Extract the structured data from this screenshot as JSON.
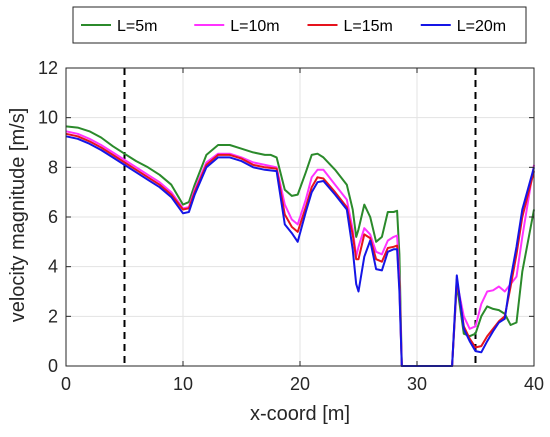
{
  "chart_data": {
    "type": "line",
    "xlabel": "x-coord [m]",
    "ylabel": "velocity magnitude [m/s]",
    "xlim": [
      0,
      40
    ],
    "ylim": [
      0,
      12
    ],
    "xticks": [
      0,
      10,
      20,
      30,
      40
    ],
    "yticks": [
      0,
      2,
      4,
      6,
      8,
      10,
      12
    ],
    "grid": true,
    "legend_position": "top",
    "reference_lines": [
      {
        "x": 5,
        "style": "dashed",
        "color": "#000000"
      },
      {
        "x": 35,
        "style": "dashed",
        "color": "#000000"
      }
    ],
    "series": [
      {
        "name": "L=5m",
        "color": "#2b8a2b",
        "points": [
          [
            0,
            9.65
          ],
          [
            1,
            9.6
          ],
          [
            2,
            9.45
          ],
          [
            3,
            9.2
          ],
          [
            4,
            8.85
          ],
          [
            5,
            8.55
          ],
          [
            6,
            8.25
          ],
          [
            7,
            8.0
          ],
          [
            8,
            7.7
          ],
          [
            9,
            7.3
          ],
          [
            10,
            6.5
          ],
          [
            10.5,
            6.6
          ],
          [
            11,
            7.3
          ],
          [
            12,
            8.5
          ],
          [
            13,
            8.9
          ],
          [
            14,
            8.9
          ],
          [
            15,
            8.75
          ],
          [
            16,
            8.6
          ],
          [
            17,
            8.5
          ],
          [
            17.5,
            8.5
          ],
          [
            18,
            8.4
          ],
          [
            18.7,
            7.1
          ],
          [
            19.3,
            6.85
          ],
          [
            19.8,
            6.9
          ],
          [
            20.5,
            7.8
          ],
          [
            21,
            8.5
          ],
          [
            21.5,
            8.55
          ],
          [
            22,
            8.4
          ],
          [
            23,
            7.9
          ],
          [
            24,
            7.3
          ],
          [
            24.5,
            6.3
          ],
          [
            24.8,
            5.2
          ],
          [
            25,
            5.5
          ],
          [
            25.5,
            6.5
          ],
          [
            26,
            6.0
          ],
          [
            26.5,
            5.0
          ],
          [
            27,
            5.2
          ],
          [
            27.5,
            6.2
          ],
          [
            28,
            6.2
          ],
          [
            28.3,
            6.25
          ],
          [
            28.5,
            4.5
          ],
          [
            28.7,
            0
          ],
          [
            33,
            0
          ],
          [
            33.4,
            3.3
          ],
          [
            34,
            1.3
          ],
          [
            34.5,
            1.2
          ],
          [
            35,
            1.3
          ],
          [
            35.5,
            2.0
          ],
          [
            36,
            2.4
          ],
          [
            36.5,
            2.3
          ],
          [
            37,
            2.25
          ],
          [
            37.5,
            2.1
          ],
          [
            38,
            1.65
          ],
          [
            38.5,
            1.75
          ],
          [
            39,
            3.8
          ],
          [
            40,
            6.3
          ]
        ]
      },
      {
        "name": "L=10m",
        "color": "#ff33ff",
        "points": [
          [
            0,
            9.45
          ],
          [
            1,
            9.35
          ],
          [
            2,
            9.15
          ],
          [
            3,
            8.9
          ],
          [
            4,
            8.6
          ],
          [
            5,
            8.3
          ],
          [
            6,
            8.0
          ],
          [
            7,
            7.7
          ],
          [
            8,
            7.4
          ],
          [
            9,
            7.0
          ],
          [
            10,
            6.35
          ],
          [
            10.5,
            6.4
          ],
          [
            11,
            7.1
          ],
          [
            12,
            8.2
          ],
          [
            13,
            8.55
          ],
          [
            14,
            8.55
          ],
          [
            15,
            8.4
          ],
          [
            16,
            8.2
          ],
          [
            17,
            8.1
          ],
          [
            18,
            8.0
          ],
          [
            18.7,
            6.5
          ],
          [
            19.3,
            5.9
          ],
          [
            19.8,
            5.7
          ],
          [
            20.5,
            6.7
          ],
          [
            21,
            7.6
          ],
          [
            21.5,
            7.9
          ],
          [
            22,
            7.9
          ],
          [
            23,
            7.3
          ],
          [
            24,
            6.7
          ],
          [
            24.5,
            5.5
          ],
          [
            24.8,
            4.4
          ],
          [
            25,
            4.8
          ],
          [
            25.5,
            5.55
          ],
          [
            26,
            5.3
          ],
          [
            26.5,
            4.6
          ],
          [
            27,
            4.5
          ],
          [
            27.5,
            5.05
          ],
          [
            28,
            5.2
          ],
          [
            28.3,
            5.25
          ],
          [
            28.5,
            3.5
          ],
          [
            28.7,
            0
          ],
          [
            33,
            0
          ],
          [
            33.4,
            3.4
          ],
          [
            34,
            2.0
          ],
          [
            34.5,
            1.5
          ],
          [
            35,
            1.6
          ],
          [
            35.5,
            2.5
          ],
          [
            36,
            3.0
          ],
          [
            36.5,
            3.05
          ],
          [
            37,
            3.2
          ],
          [
            37.5,
            3.0
          ],
          [
            38,
            3.3
          ],
          [
            38.5,
            3.6
          ],
          [
            39,
            5.2
          ],
          [
            40,
            8.1
          ]
        ]
      },
      {
        "name": "L=15m",
        "color": "#e6131d",
        "points": [
          [
            0,
            9.35
          ],
          [
            1,
            9.25
          ],
          [
            2,
            9.05
          ],
          [
            3,
            8.8
          ],
          [
            4,
            8.5
          ],
          [
            5,
            8.2
          ],
          [
            6,
            7.9
          ],
          [
            7,
            7.6
          ],
          [
            8,
            7.3
          ],
          [
            9,
            6.9
          ],
          [
            10,
            6.3
          ],
          [
            10.5,
            6.35
          ],
          [
            11,
            7.0
          ],
          [
            12,
            8.1
          ],
          [
            13,
            8.5
          ],
          [
            14,
            8.5
          ],
          [
            15,
            8.35
          ],
          [
            16,
            8.1
          ],
          [
            17,
            8.0
          ],
          [
            18,
            7.95
          ],
          [
            18.7,
            6.1
          ],
          [
            19.3,
            5.6
          ],
          [
            19.8,
            5.4
          ],
          [
            20.5,
            6.4
          ],
          [
            21,
            7.2
          ],
          [
            21.5,
            7.6
          ],
          [
            22,
            7.55
          ],
          [
            23,
            7.0
          ],
          [
            24,
            6.4
          ],
          [
            24.5,
            5.3
          ],
          [
            24.8,
            4.3
          ],
          [
            25,
            4.3
          ],
          [
            25.5,
            5.3
          ],
          [
            26,
            5.15
          ],
          [
            26.5,
            4.3
          ],
          [
            27,
            4.2
          ],
          [
            27.5,
            4.75
          ],
          [
            28,
            4.8
          ],
          [
            28.3,
            4.85
          ],
          [
            28.5,
            3.2
          ],
          [
            28.7,
            0
          ],
          [
            33,
            0
          ],
          [
            33.4,
            3.5
          ],
          [
            34,
            1.6
          ],
          [
            34.5,
            1.1
          ],
          [
            35,
            0.75
          ],
          [
            35.5,
            0.8
          ],
          [
            36,
            1.2
          ],
          [
            36.5,
            1.5
          ],
          [
            37,
            1.8
          ],
          [
            37.5,
            2.0
          ],
          [
            38,
            3.2
          ],
          [
            38.5,
            4.5
          ],
          [
            39,
            6.0
          ],
          [
            40,
            7.85
          ]
        ]
      },
      {
        "name": "L=20m",
        "color": "#1515e6",
        "points": [
          [
            0,
            9.25
          ],
          [
            1,
            9.15
          ],
          [
            2,
            8.95
          ],
          [
            3,
            8.7
          ],
          [
            4,
            8.4
          ],
          [
            5,
            8.1
          ],
          [
            6,
            7.8
          ],
          [
            7,
            7.5
          ],
          [
            8,
            7.2
          ],
          [
            9,
            6.8
          ],
          [
            10,
            6.15
          ],
          [
            10.5,
            6.2
          ],
          [
            11,
            6.9
          ],
          [
            12,
            8.0
          ],
          [
            13,
            8.4
          ],
          [
            14,
            8.4
          ],
          [
            15,
            8.25
          ],
          [
            16,
            8.0
          ],
          [
            17,
            7.9
          ],
          [
            18,
            7.85
          ],
          [
            18.7,
            5.7
          ],
          [
            19.3,
            5.35
          ],
          [
            19.8,
            5.0
          ],
          [
            20.5,
            6.2
          ],
          [
            21,
            7.0
          ],
          [
            21.5,
            7.4
          ],
          [
            22,
            7.45
          ],
          [
            23,
            6.9
          ],
          [
            24,
            6.3
          ],
          [
            24.5,
            4.7
          ],
          [
            24.8,
            3.3
          ],
          [
            25,
            3.0
          ],
          [
            25.5,
            4.4
          ],
          [
            26,
            5.05
          ],
          [
            26.5,
            3.9
          ],
          [
            27,
            3.85
          ],
          [
            27.5,
            4.6
          ],
          [
            28,
            4.7
          ],
          [
            28.3,
            4.7
          ],
          [
            28.5,
            3.0
          ],
          [
            28.7,
            0
          ],
          [
            33,
            0
          ],
          [
            33.4,
            3.65
          ],
          [
            34,
            1.5
          ],
          [
            34.5,
            1.0
          ],
          [
            35,
            0.6
          ],
          [
            35.5,
            0.55
          ],
          [
            36,
            1.0
          ],
          [
            36.5,
            1.4
          ],
          [
            37,
            1.75
          ],
          [
            37.5,
            1.9
          ],
          [
            38,
            3.5
          ],
          [
            38.5,
            4.8
          ],
          [
            39,
            6.3
          ],
          [
            40,
            8.0
          ]
        ]
      }
    ]
  }
}
